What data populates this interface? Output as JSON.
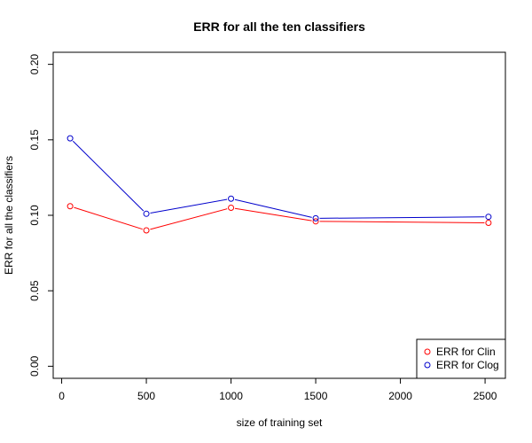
{
  "chart_data": {
    "type": "line",
    "title": "ERR for all the ten classifiers",
    "xlabel": "size of training set",
    "ylabel": "ERR for all the classifiers",
    "x": [
      50,
      500,
      1000,
      1500,
      2520
    ],
    "xlim": [
      -50,
      2620
    ],
    "ylim": [
      -0.008,
      0.208
    ],
    "xticks": [
      0,
      500,
      1000,
      1500,
      2000,
      2500
    ],
    "yticks": [
      0.0,
      0.05,
      0.1,
      0.15,
      0.2
    ],
    "ytick_labels": [
      "0.00",
      "0.05",
      "0.10",
      "0.15",
      "0.20"
    ],
    "grid": false,
    "legend_position": "bottom-right",
    "series": [
      {
        "name": "ERR for Clin",
        "color": "#ff0000",
        "values": [
          0.106,
          0.09,
          0.105,
          0.096,
          0.095
        ]
      },
      {
        "name": "ERR for Clog",
        "color": "#0000cc",
        "values": [
          0.151,
          0.101,
          0.111,
          0.098,
          0.099
        ]
      }
    ]
  }
}
